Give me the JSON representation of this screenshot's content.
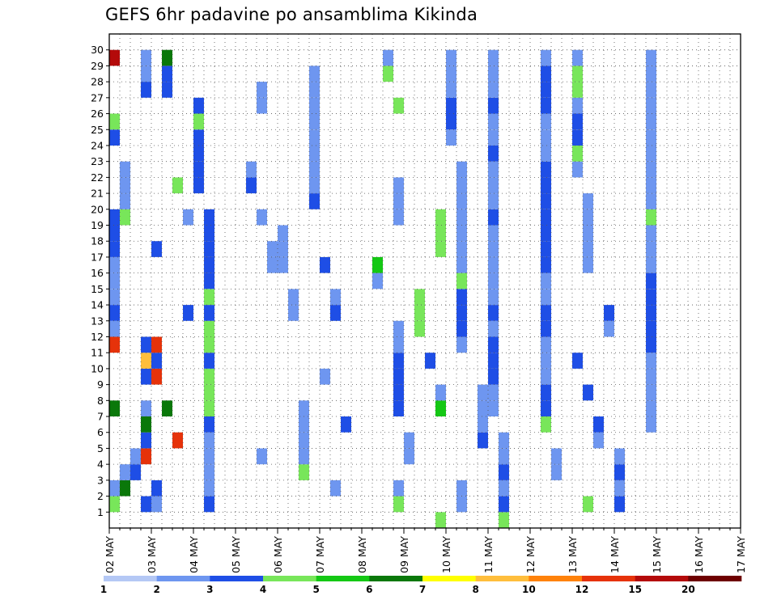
{
  "chart_data": {
    "type": "heatmap",
    "title": "GEFS 6hr padavine po ansamblima Kikinda",
    "xlabel": "",
    "ylabel": "",
    "x_tick_labels": [
      "02 MAY",
      "03 MAY",
      "04 MAY",
      "05 MAY",
      "06 MAY",
      "07 MAY",
      "08 MAY",
      "09 MAY",
      "10 MAY",
      "11 MAY",
      "12 MAY",
      "13 MAY",
      "14 MAY",
      "15 MAY",
      "16 MAY",
      "17 MAY"
    ],
    "y_tick_labels": [
      "1",
      "2",
      "3",
      "4",
      "5",
      "6",
      "7",
      "8",
      "9",
      "10",
      "11",
      "12",
      "13",
      "14",
      "15",
      "16",
      "17",
      "18",
      "19",
      "20",
      "21",
      "22",
      "23",
      "24",
      "25",
      "26",
      "27",
      "28",
      "29",
      "30"
    ],
    "steps_per_day": 4,
    "grid": "dotted",
    "colorbar": {
      "labels": [
        "1",
        "2",
        "3",
        "4",
        "5",
        "6",
        "7",
        "8",
        "10",
        "12",
        "15",
        "20"
      ],
      "colors": [
        "#b4c8f5",
        "#6e96f0",
        "#1e4ee6",
        "#78e65a",
        "#14c814",
        "#0a780a",
        "#ffff00",
        "#ffbe3c",
        "#ff820a",
        "#e6320a",
        "#b40a0a",
        "#6e0000"
      ]
    },
    "cells": [
      [
        0,
        1,
        2,
        5
      ],
      [
        0,
        1,
        3,
        5
      ],
      [
        0,
        2,
        1,
        5
      ],
      [
        0,
        2,
        5,
        5
      ],
      [
        0,
        3,
        1,
        5
      ],
      [
        0,
        3,
        2,
        5
      ],
      [
        0,
        4,
        1,
        5
      ],
      [
        0,
        4,
        9,
        5
      ],
      [
        0,
        5,
        2,
        5
      ],
      [
        0,
        6,
        5,
        5
      ],
      [
        0,
        7,
        1,
        5
      ],
      [
        0,
        7,
        5,
        1
      ],
      [
        0,
        9,
        2,
        5
      ],
      [
        0,
        10,
        7,
        5
      ],
      [
        0,
        11,
        2,
        5
      ],
      [
        0,
        11,
        9,
        5
      ],
      [
        0,
        12,
        1,
        5
      ],
      [
        0,
        13,
        2,
        5
      ],
      [
        0,
        14,
        1,
        5
      ],
      [
        0,
        15,
        1,
        5
      ],
      [
        0,
        16,
        1,
        5
      ],
      [
        0,
        17,
        2,
        5
      ],
      [
        0,
        18,
        2,
        5
      ],
      [
        0,
        19,
        2,
        5
      ],
      [
        0,
        19,
        3,
        5
      ],
      [
        0,
        20,
        1,
        5
      ],
      [
        0,
        21,
        1,
        5
      ],
      [
        0,
        22,
        1,
        5
      ],
      [
        0,
        24,
        2,
        5
      ],
      [
        0,
        25,
        3,
        5
      ],
      [
        0,
        27,
        2,
        5
      ],
      [
        0,
        28,
        1,
        5
      ],
      [
        0,
        29,
        1,
        5
      ],
      [
        0,
        29,
        10,
        5
      ],
      [
        1,
        1,
        1,
        5
      ],
      [
        1,
        2,
        2,
        5
      ],
      [
        1,
        5,
        9,
        5
      ],
      [
        1,
        7,
        5,
        5
      ],
      [
        1,
        9,
        9,
        5
      ],
      [
        1,
        10,
        2,
        5
      ],
      [
        1,
        11,
        9,
        5
      ],
      [
        1,
        13,
        2,
        5
      ],
      [
        1,
        17,
        2,
        5
      ],
      [
        1,
        19,
        1,
        5
      ],
      [
        1,
        21,
        3,
        5
      ],
      [
        1,
        27,
        2,
        5
      ],
      [
        1,
        28,
        2,
        5
      ],
      [
        1,
        29,
        5,
        5
      ],
      [
        2,
        1,
        2,
        1
      ],
      [
        2,
        2,
        1,
        5
      ],
      [
        2,
        3,
        1,
        5
      ],
      [
        2,
        4,
        1,
        5
      ],
      [
        2,
        5,
        1,
        5
      ],
      [
        2,
        6,
        2,
        1
      ],
      [
        2,
        7,
        3,
        1
      ],
      [
        2,
        8,
        3,
        1
      ],
      [
        2,
        9,
        3,
        5
      ],
      [
        2,
        10,
        2,
        1
      ],
      [
        2,
        11,
        3,
        5
      ],
      [
        2,
        12,
        3,
        5
      ],
      [
        2,
        13,
        2,
        1
      ],
      [
        2,
        14,
        3,
        5
      ],
      [
        2,
        15,
        2,
        5
      ],
      [
        2,
        16,
        2,
        5
      ],
      [
        2,
        17,
        2,
        5
      ],
      [
        2,
        18,
        2,
        1
      ],
      [
        2,
        19,
        2,
        1
      ],
      [
        2,
        21,
        2,
        5
      ],
      [
        2,
        22,
        2,
        5
      ],
      [
        2,
        23,
        2,
        5
      ],
      [
        2,
        24,
        2,
        5
      ],
      [
        2,
        25,
        3,
        5
      ],
      [
        2,
        26,
        2,
        5
      ],
      [
        3,
        4,
        1,
        5
      ],
      [
        3,
        16,
        1,
        5
      ],
      [
        3,
        17,
        1,
        5
      ],
      [
        3,
        19,
        1,
        5
      ],
      [
        3,
        21,
        2,
        5
      ],
      [
        3,
        22,
        1,
        5
      ],
      [
        3,
        26,
        1,
        5
      ],
      [
        3,
        27,
        1,
        5
      ],
      [
        4,
        3,
        3,
        1
      ],
      [
        4,
        4,
        1,
        5
      ],
      [
        4,
        5,
        1,
        5
      ],
      [
        4,
        6,
        1,
        5
      ],
      [
        4,
        7,
        1,
        5
      ],
      [
        4,
        13,
        1,
        5
      ],
      [
        4,
        14,
        1,
        5
      ],
      [
        4,
        16,
        1,
        5
      ],
      [
        4,
        17,
        1,
        5
      ],
      [
        4,
        18,
        1,
        5
      ],
      [
        4,
        20,
        2,
        5
      ],
      [
        4,
        21,
        1,
        5
      ],
      [
        4,
        22,
        1,
        5
      ],
      [
        4,
        23,
        1,
        5
      ],
      [
        4,
        24,
        1,
        5
      ],
      [
        4,
        25,
        1,
        5
      ],
      [
        4,
        26,
        1,
        5
      ],
      [
        4,
        27,
        1,
        5
      ],
      [
        4,
        28,
        1,
        5
      ],
      [
        5,
        2,
        1,
        5
      ],
      [
        5,
        6,
        2,
        5
      ],
      [
        5,
        9,
        1,
        5
      ],
      [
        5,
        13,
        2,
        5
      ],
      [
        5,
        14,
        1,
        5
      ],
      [
        5,
        16,
        2,
        5
      ],
      [
        6,
        1,
        3,
        1
      ],
      [
        6,
        2,
        1,
        5
      ],
      [
        6,
        7,
        2,
        5
      ],
      [
        6,
        8,
        2,
        5
      ],
      [
        6,
        9,
        2,
        5
      ],
      [
        6,
        10,
        2,
        5
      ],
      [
        6,
        11,
        1,
        5
      ],
      [
        6,
        12,
        1,
        5
      ],
      [
        6,
        15,
        1,
        5
      ],
      [
        6,
        16,
        4,
        1
      ],
      [
        6,
        19,
        1,
        5
      ],
      [
        6,
        20,
        1,
        5
      ],
      [
        6,
        21,
        1,
        5
      ],
      [
        6,
        26,
        3,
        5
      ],
      [
        6,
        28,
        3,
        5
      ],
      [
        6,
        29,
        1,
        5
      ],
      [
        7,
        0,
        3,
        5
      ],
      [
        7,
        4,
        1,
        5
      ],
      [
        7,
        5,
        1,
        5
      ],
      [
        7,
        7,
        4,
        1
      ],
      [
        7,
        8,
        1,
        5
      ],
      [
        7,
        10,
        2,
        5
      ],
      [
        7,
        12,
        3,
        5
      ],
      [
        7,
        13,
        3,
        5
      ],
      [
        7,
        14,
        3,
        5
      ],
      [
        7,
        17,
        3,
        5
      ],
      [
        7,
        18,
        3,
        5
      ],
      [
        7,
        19,
        3,
        5
      ],
      [
        8,
        1,
        1,
        5
      ],
      [
        8,
        2,
        1,
        5
      ],
      [
        8,
        5,
        2,
        5
      ],
      [
        8,
        6,
        1,
        5
      ],
      [
        8,
        7,
        1,
        5
      ],
      [
        8,
        8,
        1,
        5
      ],
      [
        8,
        11,
        1,
        5
      ],
      [
        8,
        12,
        2,
        5
      ],
      [
        8,
        13,
        2,
        5
      ],
      [
        8,
        14,
        2,
        5
      ],
      [
        8,
        15,
        3,
        5
      ],
      [
        8,
        16,
        1,
        5
      ],
      [
        8,
        17,
        1,
        5
      ],
      [
        8,
        18,
        1,
        5
      ],
      [
        8,
        19,
        1,
        5
      ],
      [
        8,
        20,
        1,
        5
      ],
      [
        8,
        21,
        1,
        5
      ],
      [
        8,
        22,
        1,
        5
      ],
      [
        8,
        24,
        1,
        5
      ],
      [
        8,
        25,
        2,
        5
      ],
      [
        8,
        26,
        2,
        5
      ],
      [
        8,
        27,
        1,
        5
      ],
      [
        8,
        28,
        1,
        5
      ],
      [
        8,
        29,
        1,
        5
      ],
      [
        9,
        0,
        3,
        5
      ],
      [
        9,
        1,
        2,
        5
      ],
      [
        9,
        2,
        1,
        5
      ],
      [
        9,
        3,
        2,
        5
      ],
      [
        9,
        4,
        1,
        5
      ],
      [
        9,
        5,
        1,
        5
      ],
      [
        9,
        7,
        1,
        5
      ],
      [
        9,
        8,
        1,
        5
      ],
      [
        9,
        9,
        2,
        5
      ],
      [
        9,
        10,
        2,
        5
      ],
      [
        9,
        11,
        2,
        5
      ],
      [
        9,
        12,
        1,
        5
      ],
      [
        9,
        13,
        2,
        5
      ],
      [
        9,
        14,
        1,
        5
      ],
      [
        9,
        15,
        1,
        5
      ],
      [
        9,
        16,
        1,
        5
      ],
      [
        9,
        17,
        1,
        5
      ],
      [
        9,
        18,
        1,
        5
      ],
      [
        9,
        19,
        2,
        5
      ],
      [
        9,
        20,
        1,
        5
      ],
      [
        9,
        21,
        1,
        5
      ],
      [
        9,
        22,
        1,
        5
      ],
      [
        9,
        23,
        2,
        5
      ],
      [
        9,
        24,
        1,
        5
      ],
      [
        9,
        25,
        1,
        5
      ],
      [
        9,
        26,
        2,
        5
      ],
      [
        9,
        27,
        1,
        5
      ],
      [
        9,
        28,
        1,
        5
      ],
      [
        9,
        29,
        1,
        5
      ],
      [
        10,
        3,
        1,
        5
      ],
      [
        10,
        4,
        1,
        5
      ],
      [
        10,
        6,
        3,
        5
      ],
      [
        10,
        7,
        2,
        5
      ],
      [
        10,
        8,
        2,
        5
      ],
      [
        10,
        9,
        1,
        5
      ],
      [
        10,
        10,
        1,
        5
      ],
      [
        10,
        11,
        1,
        5
      ],
      [
        10,
        12,
        2,
        5
      ],
      [
        10,
        13,
        2,
        5
      ],
      [
        10,
        14,
        1,
        5
      ],
      [
        10,
        15,
        1,
        5
      ],
      [
        10,
        16,
        2,
        5
      ],
      [
        10,
        17,
        2,
        5
      ],
      [
        10,
        18,
        2,
        5
      ],
      [
        10,
        19,
        2,
        5
      ],
      [
        10,
        20,
        2,
        5
      ],
      [
        10,
        21,
        2,
        5
      ],
      [
        10,
        22,
        2,
        5
      ],
      [
        10,
        23,
        1,
        5
      ],
      [
        10,
        24,
        1,
        5
      ],
      [
        10,
        25,
        1,
        5
      ],
      [
        10,
        26,
        2,
        5
      ],
      [
        10,
        27,
        2,
        5
      ],
      [
        10,
        28,
        2,
        5
      ],
      [
        10,
        29,
        1,
        5
      ],
      [
        11,
        1,
        3,
        1
      ],
      [
        11,
        5,
        1,
        5
      ],
      [
        11,
        6,
        2,
        5
      ],
      [
        11,
        8,
        2,
        5
      ],
      [
        11,
        10,
        2,
        5
      ],
      [
        11,
        12,
        1,
        5
      ],
      [
        11,
        13,
        2,
        5
      ],
      [
        11,
        16,
        1,
        5
      ],
      [
        11,
        17,
        1,
        5
      ],
      [
        11,
        18,
        1,
        5
      ],
      [
        11,
        19,
        1,
        5
      ],
      [
        11,
        20,
        1,
        5
      ],
      [
        11,
        22,
        1,
        5
      ],
      [
        11,
        23,
        3,
        5
      ],
      [
        11,
        24,
        2,
        5
      ],
      [
        11,
        25,
        2,
        5
      ],
      [
        11,
        26,
        1,
        5
      ],
      [
        11,
        27,
        3,
        5
      ],
      [
        11,
        28,
        3,
        5
      ],
      [
        11,
        29,
        1,
        5
      ],
      [
        12,
        1,
        2,
        1
      ],
      [
        12,
        2,
        1,
        5
      ],
      [
        12,
        3,
        2,
        5
      ],
      [
        12,
        4,
        1,
        5
      ],
      [
        12,
        6,
        1,
        5
      ],
      [
        12,
        7,
        1,
        5
      ],
      [
        12,
        8,
        1,
        5
      ],
      [
        12,
        9,
        1,
        5
      ],
      [
        12,
        10,
        1,
        5
      ],
      [
        12,
        11,
        2,
        5
      ],
      [
        12,
        12,
        2,
        5
      ],
      [
        12,
        13,
        2,
        5
      ],
      [
        12,
        14,
        2,
        5
      ],
      [
        12,
        15,
        2,
        5
      ],
      [
        12,
        16,
        1,
        5
      ],
      [
        12,
        17,
        1,
        5
      ],
      [
        12,
        18,
        1,
        5
      ],
      [
        12,
        19,
        3,
        5
      ],
      [
        12,
        20,
        1,
        5
      ],
      [
        12,
        21,
        1,
        5
      ],
      [
        12,
        22,
        1,
        5
      ],
      [
        12,
        23,
        1,
        5
      ],
      [
        12,
        24,
        1,
        5
      ],
      [
        12,
        25,
        1,
        5
      ],
      [
        12,
        26,
        1,
        5
      ],
      [
        12,
        27,
        1,
        5
      ],
      [
        12,
        28,
        1,
        5
      ],
      [
        12,
        29,
        1,
        5
      ]
    ]
  },
  "colorbar_legend": [
    "1",
    "2",
    "3",
    "4",
    "5",
    "6",
    "7",
    "8",
    "10",
    "12",
    "15",
    "20"
  ]
}
